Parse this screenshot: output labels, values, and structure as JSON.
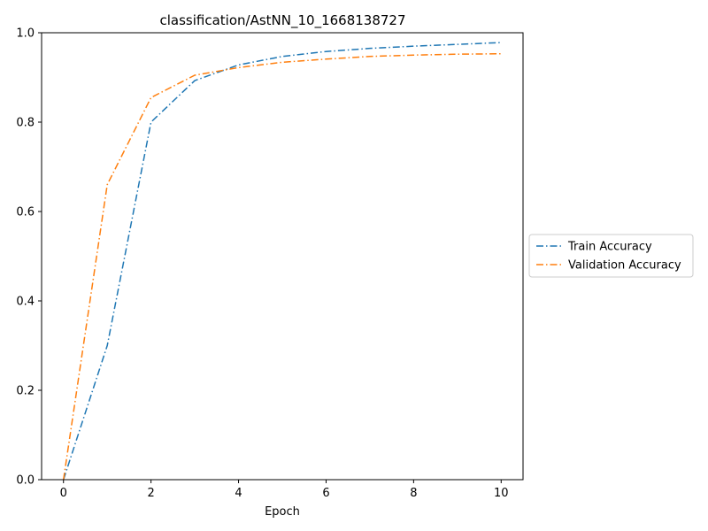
{
  "chart_data": {
    "type": "line",
    "title": "classification/AstNN_10_1668138727",
    "xlabel": "Epoch",
    "ylabel": "",
    "xlim": [
      -0.5,
      10.5
    ],
    "ylim": [
      0,
      1.0
    ],
    "xticks": [
      0,
      2,
      4,
      6,
      8,
      10
    ],
    "yticks": [
      0.0,
      0.2,
      0.4,
      0.6,
      0.8,
      1.0
    ],
    "xtick_labels": [
      "0",
      "2",
      "4",
      "6",
      "8",
      "10"
    ],
    "ytick_labels": [
      "0.0",
      "0.2",
      "0.4",
      "0.6",
      "0.8",
      "1.0"
    ],
    "grid": false,
    "legend_position": "outside-right",
    "x": [
      0,
      1,
      2,
      3,
      4,
      5,
      6,
      7,
      8,
      9,
      10
    ],
    "series": [
      {
        "name": "Train Accuracy",
        "color": "#1f77b4",
        "linestyle": "dashdot",
        "values": [
          0.0,
          0.3,
          0.8,
          0.893,
          0.928,
          0.947,
          0.958,
          0.965,
          0.97,
          0.974,
          0.978
        ]
      },
      {
        "name": "Validation Accuracy",
        "color": "#ff7f0e",
        "linestyle": "dashdot",
        "values": [
          0.0,
          0.66,
          0.855,
          0.905,
          0.922,
          0.934,
          0.941,
          0.947,
          0.95,
          0.952,
          0.953
        ]
      }
    ]
  }
}
